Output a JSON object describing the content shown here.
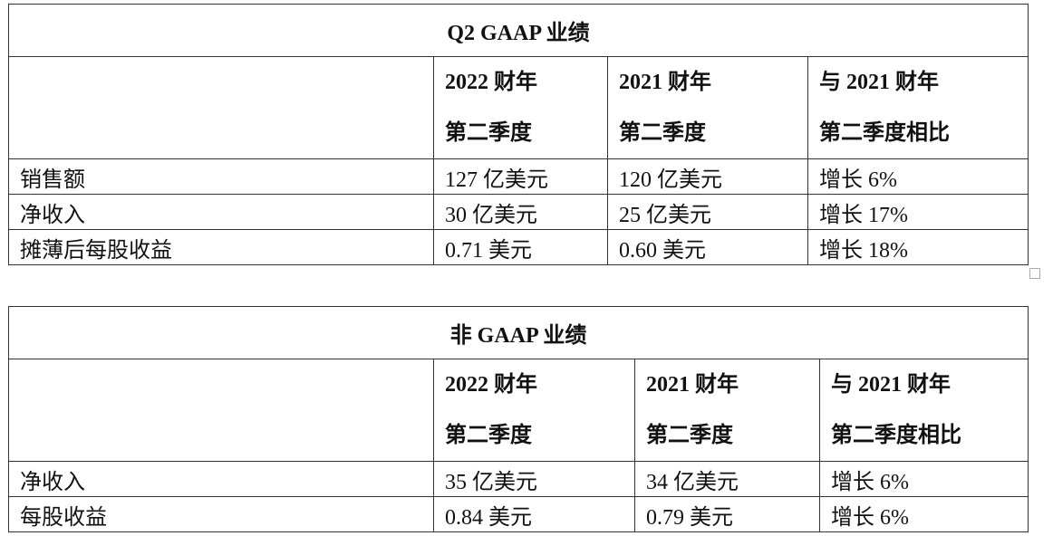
{
  "tables": [
    {
      "title": "Q2 GAAP 业绩",
      "header": [
        [
          "2022 财年",
          "第二季度"
        ],
        [
          "2021 财年",
          "第二季度"
        ],
        [
          "与 2021 财年",
          "第二季度相比"
        ]
      ],
      "rows": [
        [
          "销售额",
          "127 亿美元",
          "120 亿美元",
          "增长 6%"
        ],
        [
          "净收入",
          "30 亿美元",
          "25 亿美元",
          "增长 17%"
        ],
        [
          "摊薄后每股收益",
          "0.71 美元",
          "0.60 美元",
          "增长 18%"
        ]
      ]
    },
    {
      "title": "非 GAAP 业绩",
      "header": [
        [
          "2022 财年",
          "第二季度"
        ],
        [
          "2021 财年",
          "第二季度"
        ],
        [
          "与 2021 财年",
          "第二季度相比"
        ]
      ],
      "rows": [
        [
          "净收入",
          "35 亿美元",
          "34 亿美元",
          "增长 6%"
        ],
        [
          "每股收益",
          "0.84 美元",
          "0.79 美元",
          "增长 6%"
        ]
      ]
    }
  ]
}
